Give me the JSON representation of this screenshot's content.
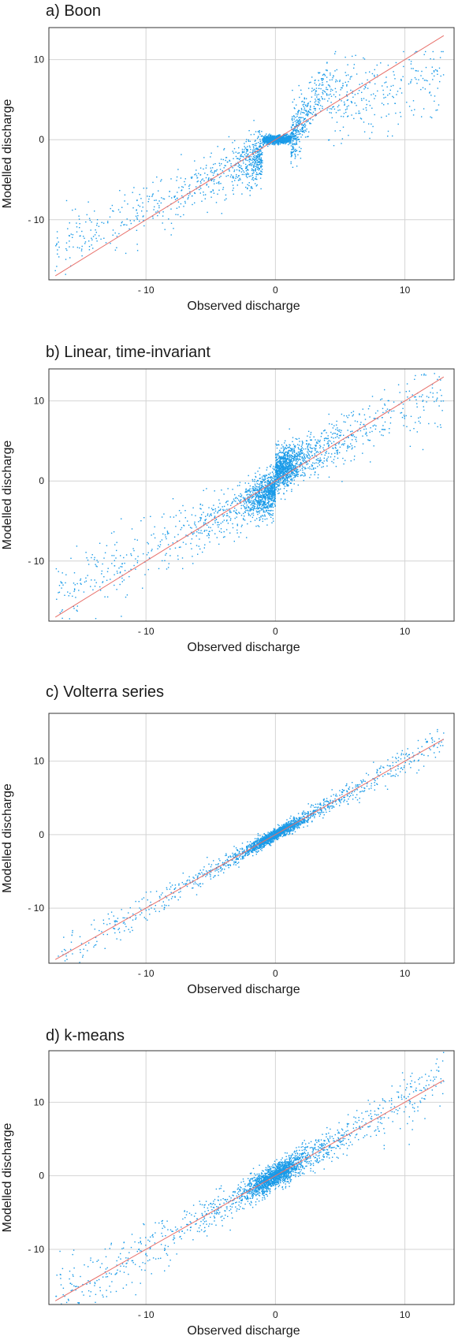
{
  "chart_data": [
    {
      "type": "scatter",
      "title": "a) Boon",
      "xlabel": "Observed discharge",
      "ylabel": "Modelled discharge",
      "xlim": [
        -17.5,
        13.8
      ],
      "ylim": [
        -17.5,
        14.0
      ],
      "xticks": [
        -10,
        0,
        10
      ],
      "xtick_labels": [
        "- 10",
        "0",
        "10"
      ],
      "yticks": [
        -10,
        0,
        10
      ],
      "ytick_labels": [
        "- 10",
        "0",
        "10"
      ],
      "grid": true,
      "reference_line": {
        "from": [
          -17,
          -17
        ],
        "to": [
          13,
          13
        ],
        "color": "#e8706a"
      },
      "point_color": "#1a9be8",
      "model": "boon",
      "n_points": 2600
    },
    {
      "type": "scatter",
      "title": "b) Linear, time-invariant",
      "xlabel": "Observed discharge",
      "ylabel": "Modelled discharge",
      "xlim": [
        -17.5,
        13.8
      ],
      "ylim": [
        -17.5,
        14.0
      ],
      "xticks": [
        -10,
        0,
        10
      ],
      "xtick_labels": [
        "- 10",
        "0",
        "10"
      ],
      "yticks": [
        -10,
        0,
        10
      ],
      "ytick_labels": [
        "- 10",
        "0",
        "10"
      ],
      "grid": true,
      "reference_line": {
        "from": [
          -17,
          -17
        ],
        "to": [
          13,
          13
        ],
        "color": "#e8706a"
      },
      "point_color": "#1a9be8",
      "model": "linear",
      "n_points": 2600
    },
    {
      "type": "scatter",
      "title": "c) Volterra series",
      "xlabel": "Observed discharge",
      "ylabel": "Modelled discharge",
      "xlim": [
        -17.5,
        13.8
      ],
      "ylim": [
        -17.5,
        16.5
      ],
      "xticks": [
        -10,
        0,
        10
      ],
      "xtick_labels": [
        "- 10",
        "0",
        "10"
      ],
      "yticks": [
        -10,
        0,
        10
      ],
      "ytick_labels": [
        "- 10",
        "0",
        "10"
      ],
      "grid": true,
      "reference_line": {
        "from": [
          -17,
          -17
        ],
        "to": [
          13,
          13
        ],
        "color": "#e8706a"
      },
      "point_color": "#1a9be8",
      "model": "volterra",
      "n_points": 2200
    },
    {
      "type": "scatter",
      "title": "d) k-means",
      "xlabel": "Observed discharge",
      "ylabel": "Modelled discharge",
      "xlim": [
        -17.5,
        13.8
      ],
      "ylim": [
        -17.5,
        17.0
      ],
      "xticks": [
        -10,
        0,
        10
      ],
      "xtick_labels": [
        "- 10",
        "0",
        "10"
      ],
      "yticks": [
        -10,
        0,
        10
      ],
      "ytick_labels": [
        "- 10",
        "0",
        "10"
      ],
      "grid": true,
      "reference_line": {
        "from": [
          -17,
          -17
        ],
        "to": [
          13,
          13
        ],
        "color": "#e8706a"
      },
      "point_color": "#1a9be8",
      "model": "kmeans",
      "n_points": 2400
    }
  ]
}
